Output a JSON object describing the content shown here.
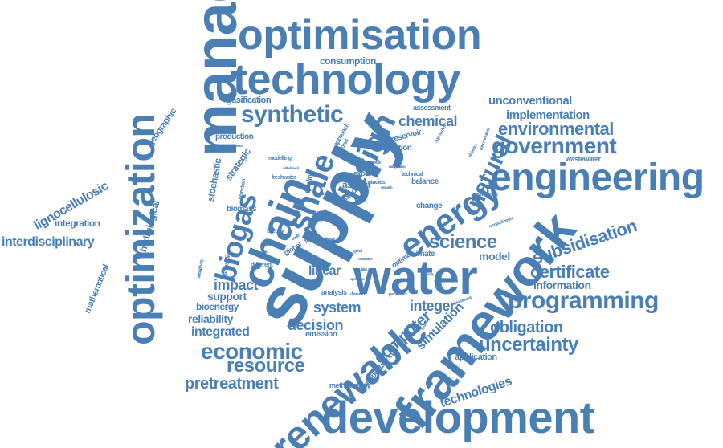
{
  "colors": {
    "word": "#4a7fb5",
    "background": "#ffffff"
  },
  "words": [
    "management",
    "supply",
    "development",
    "framework",
    "engineering",
    "optimization",
    "technology",
    "optimisation",
    "water",
    "chain",
    "renewable",
    "design",
    "energy",
    "shale",
    "biogas",
    "natural",
    "programming",
    "synthetic",
    "economic",
    "government",
    "environmental",
    "uncertainty",
    "science",
    "resource",
    "certificate",
    "subsidisation",
    "pretreatment",
    "interdisciplinary",
    "lignocellulosic",
    "decision",
    "system",
    "impact",
    "computer",
    "integer",
    "simulation",
    "obligation",
    "technologies",
    "linear",
    "integrated",
    "reliability",
    "bioenergy",
    "support",
    "information",
    "model",
    "chemical",
    "implementation",
    "unconventional",
    "consumption",
    "gasification",
    "integration",
    "hydrological",
    "mathematical",
    "geographic",
    "stochastic",
    "strategic",
    "production",
    "transportation",
    "application",
    "methodology",
    "emission",
    "analysis",
    "change",
    "biomass",
    "theory",
    "different",
    "subsidies",
    "aspect",
    "balance",
    "climate",
    "optimal",
    "mixed",
    "explicit",
    "assessment",
    "wastewater",
    "location",
    "reservoir",
    "approach",
    "national",
    "quality",
    "modelling",
    "selection",
    "freshwater",
    "technical",
    "studies",
    "scale",
    "global",
    "food",
    "feed",
    "sensitivity",
    "parameter",
    "scenario",
    "demand",
    "great",
    "investment",
    "comprehensive",
    "approaches",
    "objective",
    "concentration",
    "governmental",
    "regional",
    "tariff",
    "study",
    "result",
    "planning",
    "processes",
    "withdrawal",
    "composition",
    "possible",
    "capacity",
    "operations",
    "dynamic",
    "facilities",
    "dryland",
    "research",
    "goals"
  ]
}
